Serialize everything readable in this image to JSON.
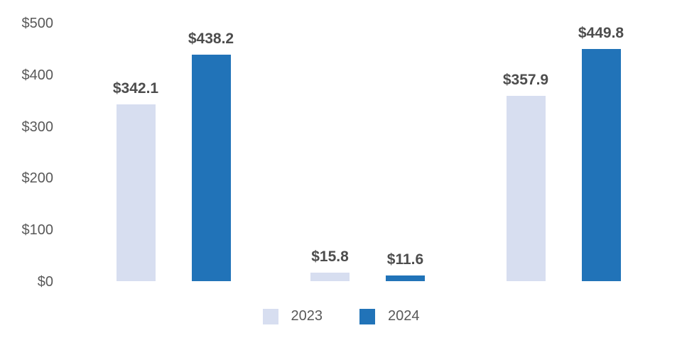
{
  "chart_data": {
    "type": "bar",
    "title": "",
    "categories": [
      "",
      "",
      ""
    ],
    "series": [
      {
        "name": "2023",
        "color": "#d7def0",
        "values": [
          342.1,
          15.8,
          357.9
        ],
        "labels": [
          "$342.1",
          "$15.8",
          "$357.9"
        ]
      },
      {
        "name": "2024",
        "color": "#2173b8",
        "values": [
          438.2,
          11.6,
          449.8
        ],
        "labels": [
          "$438.2",
          "$11.6",
          "$449.8"
        ]
      }
    ],
    "y_axis": {
      "min": 0,
      "max": 500,
      "ticks": [
        {
          "value": 0,
          "label": "$0"
        },
        {
          "value": 100,
          "label": "$100"
        },
        {
          "value": 200,
          "label": "$200"
        },
        {
          "value": 300,
          "label": "$300"
        },
        {
          "value": 400,
          "label": "$400"
        },
        {
          "value": 500,
          "label": "$500"
        }
      ]
    },
    "legend": {
      "position": "bottom-center",
      "entries": [
        {
          "label": "2023",
          "color": "#d7def0"
        },
        {
          "label": "2024",
          "color": "#2173b8"
        }
      ]
    },
    "grid": false,
    "axis_lines": false
  },
  "colors": {
    "background": "#ffffff",
    "axis_text": "#595959",
    "data_label_text": "#4d4d4d"
  }
}
